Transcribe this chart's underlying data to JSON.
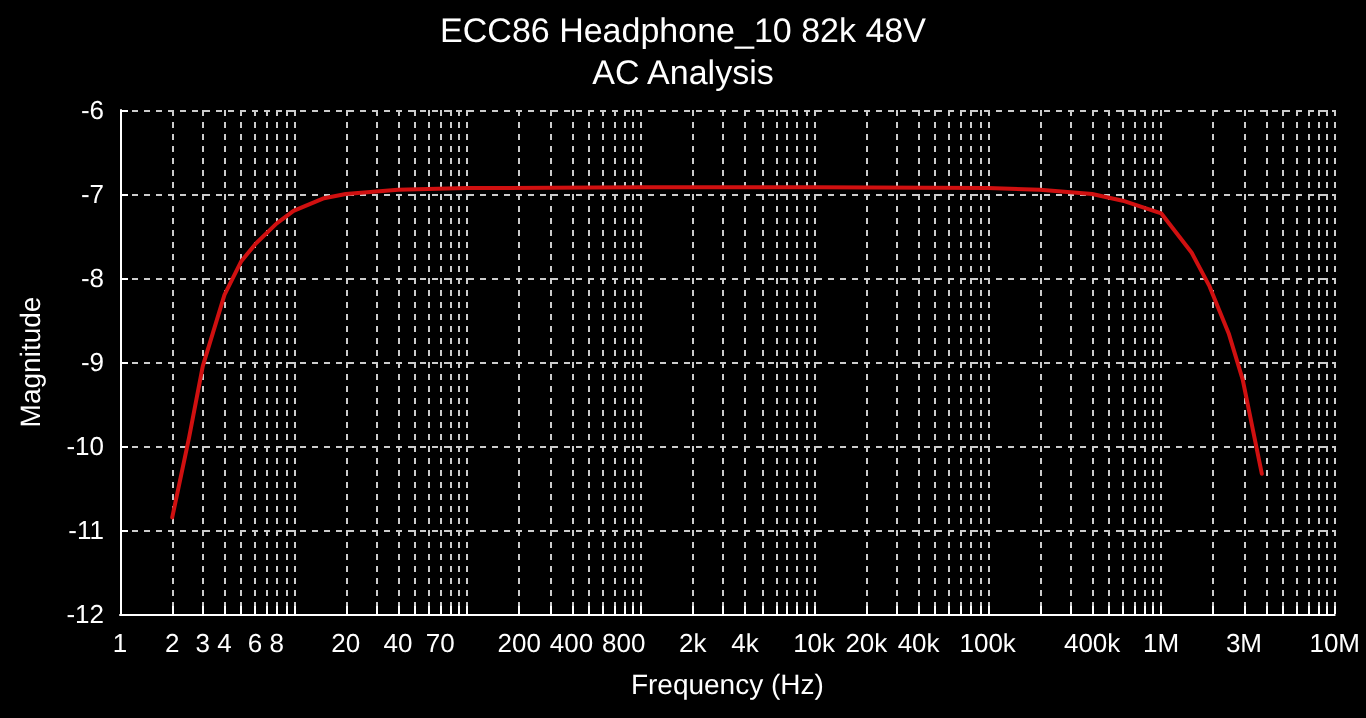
{
  "chart_data": {
    "type": "line",
    "title": "ECC86 Headphone_10 82k 48V",
    "subtitle": "AC Analysis",
    "xlabel": "Frequency (Hz)",
    "ylabel": "Magnitude",
    "log": "x",
    "grid": true,
    "marker": "none",
    "line_style": "solid",
    "xlim": [
      1,
      10000000
    ],
    "ylim": [
      -12,
      -6
    ],
    "yticks": [
      -12,
      -11,
      -10,
      -9,
      -8,
      -7,
      -6
    ],
    "xticks": [
      {
        "value": 1,
        "label": "1"
      },
      {
        "value": 2,
        "label": "2"
      },
      {
        "value": 3,
        "label": "3"
      },
      {
        "value": 4,
        "label": "4"
      },
      {
        "value": 5,
        "label": null
      },
      {
        "value": 6,
        "label": "6"
      },
      {
        "value": 7,
        "label": null
      },
      {
        "value": 8,
        "label": "8"
      },
      {
        "value": 9,
        "label": null
      },
      {
        "value": 10,
        "label": null
      },
      {
        "value": 20,
        "label": "20"
      },
      {
        "value": 30,
        "label": null
      },
      {
        "value": 40,
        "label": "40"
      },
      {
        "value": 50,
        "label": null
      },
      {
        "value": 60,
        "label": null
      },
      {
        "value": 70,
        "label": "70"
      },
      {
        "value": 80,
        "label": null
      },
      {
        "value": 90,
        "label": null
      },
      {
        "value": 100,
        "label": null
      },
      {
        "value": 200,
        "label": "200"
      },
      {
        "value": 300,
        "label": null
      },
      {
        "value": 400,
        "label": "400"
      },
      {
        "value": 500,
        "label": null
      },
      {
        "value": 600,
        "label": null
      },
      {
        "value": 700,
        "label": null
      },
      {
        "value": 800,
        "label": "800"
      },
      {
        "value": 900,
        "label": null
      },
      {
        "value": 1000,
        "label": null
      },
      {
        "value": 2000,
        "label": "2k"
      },
      {
        "value": 3000,
        "label": null
      },
      {
        "value": 4000,
        "label": "4k"
      },
      {
        "value": 5000,
        "label": null
      },
      {
        "value": 6000,
        "label": null
      },
      {
        "value": 7000,
        "label": null
      },
      {
        "value": 8000,
        "label": null
      },
      {
        "value": 9000,
        "label": null
      },
      {
        "value": 10000,
        "label": "10k"
      },
      {
        "value": 20000,
        "label": "20k"
      },
      {
        "value": 30000,
        "label": null
      },
      {
        "value": 40000,
        "label": "40k"
      },
      {
        "value": 50000,
        "label": null
      },
      {
        "value": 60000,
        "label": null
      },
      {
        "value": 70000,
        "label": null
      },
      {
        "value": 80000,
        "label": null
      },
      {
        "value": 90000,
        "label": null
      },
      {
        "value": 100000,
        "label": "100k"
      },
      {
        "value": 200000,
        "label": null
      },
      {
        "value": 300000,
        "label": null
      },
      {
        "value": 400000,
        "label": "400k"
      },
      {
        "value": 500000,
        "label": null
      },
      {
        "value": 600000,
        "label": null
      },
      {
        "value": 700000,
        "label": null
      },
      {
        "value": 800000,
        "label": null
      },
      {
        "value": 900000,
        "label": null
      },
      {
        "value": 1000000,
        "label": "1M"
      },
      {
        "value": 2000000,
        "label": null
      },
      {
        "value": 3000000,
        "label": "3M"
      },
      {
        "value": 4000000,
        "label": null
      },
      {
        "value": 5000000,
        "label": null
      },
      {
        "value": 6000000,
        "label": null
      },
      {
        "value": 7000000,
        "label": null
      },
      {
        "value": 8000000,
        "label": null
      },
      {
        "value": 9000000,
        "label": null
      },
      {
        "value": 10000000,
        "label": "10M"
      }
    ],
    "series": [
      {
        "color": "#d01010",
        "x": [
          2,
          2.5,
          3,
          4,
          5,
          6,
          8,
          10,
          15,
          20,
          40,
          100,
          1000,
          10000,
          100000,
          200000,
          400000,
          600000,
          1000000,
          1500000,
          1900000,
          2450000,
          2950000,
          3800000
        ],
        "values": [
          -10.85,
          -9.9,
          -9.05,
          -8.2,
          -7.8,
          -7.6,
          -7.35,
          -7.2,
          -7.05,
          -7.0,
          -6.95,
          -6.93,
          -6.92,
          -6.92,
          -6.93,
          -6.95,
          -7.0,
          -7.08,
          -7.23,
          -7.7,
          -8.1,
          -8.66,
          -9.21,
          -10.33
        ]
      }
    ]
  }
}
